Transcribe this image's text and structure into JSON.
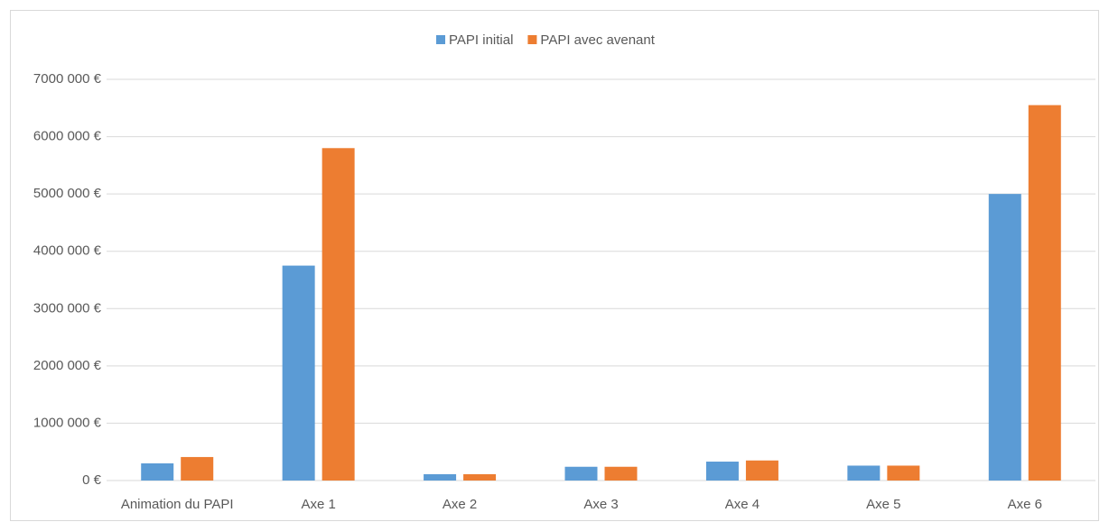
{
  "chart_data": {
    "type": "bar",
    "categories": [
      "Animation du PAPI",
      "Axe 1",
      "Axe 2",
      "Axe 3",
      "Axe 4",
      "Axe 5",
      "Axe 6"
    ],
    "series": [
      {
        "name": "PAPI initial",
        "color": "#5b9bd5",
        "values": [
          300000,
          3750000,
          110000,
          240000,
          330000,
          260000,
          5000000
        ]
      },
      {
        "name": "PAPI avec avenant",
        "color": "#ed7d31",
        "values": [
          410000,
          5800000,
          110000,
          240000,
          350000,
          260000,
          6550000
        ]
      }
    ],
    "ylim": [
      0,
      7000000
    ],
    "yticks": [
      {
        "value": 0,
        "label": "0 €"
      },
      {
        "value": 1000000,
        "label": "1000 000 €"
      },
      {
        "value": 2000000,
        "label": "2000 000 €"
      },
      {
        "value": 3000000,
        "label": "3000 000 €"
      },
      {
        "value": 4000000,
        "label": "4000 000 €"
      },
      {
        "value": 5000000,
        "label": "5000 000 €"
      },
      {
        "value": 6000000,
        "label": "6000 000 €"
      },
      {
        "value": 7000000,
        "label": "7000 000 €"
      }
    ],
    "grid": true,
    "legend": "top"
  }
}
